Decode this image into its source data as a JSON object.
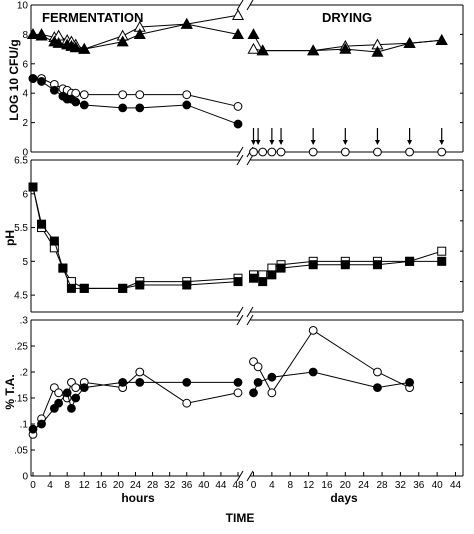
{
  "figure": {
    "header_left": "FERMENTATION",
    "header_right": "DRYING",
    "x_left_label": "hours",
    "x_right_label": "days",
    "x_title": "TIME"
  },
  "chart_data": [
    {
      "type": "line",
      "panel": "top",
      "ylabel": "LOG 10 CFU/g",
      "ylim": [
        0,
        10
      ],
      "yticks": [
        "0",
        "2",
        "4",
        "6",
        "8",
        "10"
      ],
      "grid": false,
      "x_left": {
        "range": [
          0,
          48
        ],
        "ticks": [
          "0",
          "4",
          "8",
          "12",
          "16",
          "20",
          "24",
          "28",
          "32",
          "36",
          "40",
          "44",
          "48"
        ],
        "label": "hours"
      },
      "x_right": {
        "range": [
          -2,
          44
        ],
        "ticks": [
          "0",
          "4",
          "8",
          "12",
          "16",
          "20",
          "24",
          "28",
          "32",
          "36",
          "40",
          "44"
        ],
        "label": "days"
      },
      "series": [
        {
          "marker": "triangle-open",
          "fermentation": {
            "x": [
              0,
              2,
              5,
              6,
              8,
              9,
              10,
              12,
              21,
              25,
              36,
              48
            ],
            "y": [
              8.0,
              8.0,
              7.8,
              7.9,
              7.6,
              7.5,
              7.3,
              7.0,
              7.9,
              8.5,
              8.7,
              9.3
            ]
          },
          "drying": {
            "x": [
              0,
              2,
              13,
              20,
              27,
              34,
              41
            ],
            "y": [
              7.0,
              6.9,
              6.9,
              7.2,
              7.3,
              7.4,
              7.6
            ]
          }
        },
        {
          "marker": "triangle-filled",
          "fermentation": {
            "x": [
              0,
              2,
              5,
              6,
              8,
              9,
              10,
              12,
              21,
              25,
              36,
              48
            ],
            "y": [
              8.0,
              7.9,
              7.5,
              7.4,
              7.3,
              7.2,
              7.1,
              7.0,
              7.5,
              8.0,
              8.7,
              8.0
            ]
          },
          "drying": {
            "x": [
              0,
              2,
              13,
              20,
              27,
              34,
              41
            ],
            "y": [
              8.0,
              6.9,
              6.9,
              7.0,
              6.8,
              7.4,
              7.6
            ]
          }
        },
        {
          "marker": "circle-open",
          "fermentation": {
            "x": [
              0,
              2,
              5,
              7,
              8,
              9,
              10,
              12,
              21,
              25,
              36,
              48
            ],
            "y": [
              5.0,
              5.0,
              4.6,
              4.3,
              4.2,
              4.0,
              4.0,
              3.9,
              3.9,
              3.9,
              3.9,
              3.1
            ]
          },
          "drying": {
            "x": [
              0,
              2,
              4,
              6,
              13,
              20,
              27,
              34,
              41
            ],
            "y": [
              0,
              0,
              0,
              0,
              0,
              0,
              0,
              0,
              0
            ]
          }
        },
        {
          "marker": "circle-filled",
          "fermentation": {
            "x": [
              0,
              2,
              5,
              7,
              8,
              9,
              10,
              12,
              21,
              25,
              36,
              48
            ],
            "y": [
              5.0,
              4.8,
              4.2,
              3.8,
              3.6,
              3.6,
              3.4,
              3.2,
              3.0,
              3.0,
              3.2,
              1.9
            ]
          }
        }
      ],
      "arrows_at_days": [
        0,
        1,
        4,
        6,
        13,
        20,
        27,
        34,
        41
      ]
    },
    {
      "type": "line",
      "panel": "middle",
      "ylabel": "pH",
      "ylim": [
        4.25,
        6.5
      ],
      "yticks": [
        "4.5",
        "5",
        "5.5",
        "6",
        "6.5"
      ],
      "grid": false,
      "series": [
        {
          "marker": "square-open",
          "fermentation": {
            "x": [
              0,
              2,
              5,
              7,
              9,
              12,
              21,
              25,
              36,
              48
            ],
            "y": [
              6.1,
              5.5,
              5.2,
              4.9,
              4.7,
              4.6,
              4.6,
              4.7,
              4.7,
              4.75
            ]
          },
          "drying": {
            "x": [
              0,
              2,
              4,
              6,
              13,
              20,
              27,
              34,
              41
            ],
            "y": [
              4.8,
              4.8,
              4.9,
              4.95,
              5.0,
              5.0,
              5.0,
              5.0,
              5.15
            ]
          }
        },
        {
          "marker": "square-filled",
          "fermentation": {
            "x": [
              0,
              2,
              5,
              7,
              9,
              12,
              21,
              25,
              36,
              48
            ],
            "y": [
              6.1,
              5.55,
              5.3,
              4.9,
              4.6,
              4.6,
              4.6,
              4.65,
              4.65,
              4.7
            ]
          },
          "drying": {
            "x": [
              0,
              2,
              4,
              6,
              13,
              20,
              27,
              34,
              41
            ],
            "y": [
              4.75,
              4.7,
              4.8,
              4.9,
              4.95,
              4.95,
              4.95,
              5.0,
              5.0
            ]
          }
        }
      ]
    },
    {
      "type": "line",
      "panel": "bottom",
      "ylabel": "% T.A.",
      "ylim": [
        0,
        0.3
      ],
      "yticks": [
        "0",
        ".05",
        ".1",
        ".15",
        ".2",
        ".25",
        ".3"
      ],
      "grid": false,
      "series": [
        {
          "marker": "circle-open",
          "fermentation": {
            "x": [
              0,
              2,
              5,
              6,
              8,
              9,
              10,
              12,
              21,
              25,
              36,
              48
            ],
            "y": [
              0.08,
              0.11,
              0.17,
              0.16,
              0.15,
              0.18,
              0.17,
              0.18,
              0.17,
              0.2,
              0.14,
              0.16
            ]
          },
          "drying": {
            "x": [
              0,
              1,
              4,
              13,
              27,
              34
            ],
            "y": [
              0.22,
              0.21,
              0.16,
              0.28,
              0.2,
              0.17
            ]
          }
        },
        {
          "marker": "circle-filled",
          "fermentation": {
            "x": [
              0,
              2,
              5,
              6,
              8,
              9,
              10,
              12,
              21,
              25,
              36,
              48
            ],
            "y": [
              0.09,
              0.1,
              0.13,
              0.14,
              0.16,
              0.13,
              0.15,
              0.17,
              0.18,
              0.18,
              0.18,
              0.18
            ]
          },
          "drying": {
            "x": [
              0,
              1,
              4,
              13,
              27,
              34
            ],
            "y": [
              0.16,
              0.18,
              0.19,
              0.2,
              0.17,
              0.18
            ]
          }
        }
      ]
    }
  ]
}
